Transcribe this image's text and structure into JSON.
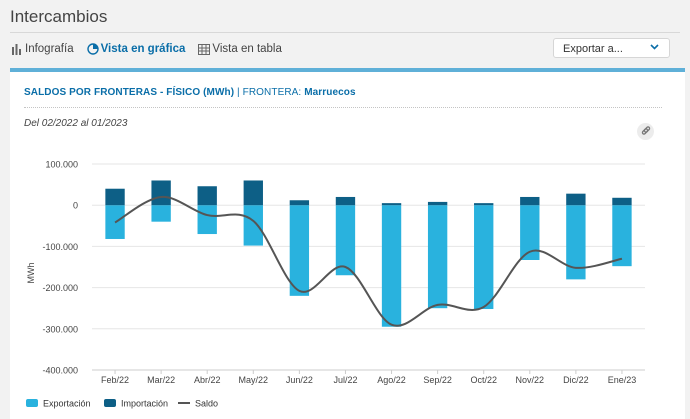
{
  "header": {
    "title": "Intercambios"
  },
  "tabs": [
    {
      "label": "Infografía",
      "active": false,
      "icon": "bar-chart-icon"
    },
    {
      "label": "Vista en gráfica",
      "active": true,
      "icon": "pie-chart-icon"
    },
    {
      "label": "Vista en tabla",
      "active": false,
      "icon": "table-icon"
    }
  ],
  "export": {
    "label": "Exportar a..."
  },
  "card": {
    "title_main": "SALDOS POR FRONTERAS - FÍSICO (MWh)",
    "title_sep": " | ",
    "frontier_label": "FRONTERA: ",
    "frontier_value": "Marruecos",
    "date_range": "Del 02/2022 al 01/2023"
  },
  "colors": {
    "accent": "#0a6ea8",
    "exportacion": "#29b2de",
    "importacion": "#0d5f86",
    "saldo": "#555555",
    "card_border": "#5fb0d8"
  },
  "chart_data": {
    "type": "bar",
    "ylabel": "MWh",
    "ylim": [
      -400000,
      100000
    ],
    "yticks": [
      100000,
      0,
      -100000,
      -200000,
      -300000,
      -400000
    ],
    "ytick_labels": [
      "100.000",
      "0",
      "-100.000",
      "-200.000",
      "-300.000",
      "-400.000"
    ],
    "categories": [
      "Feb/22",
      "Mar/22",
      "Abr/22",
      "May/22",
      "Jun/22",
      "Jul/22",
      "Ago/22",
      "Sep/22",
      "Oct/22",
      "Nov/22",
      "Dic/22",
      "Ene/23"
    ],
    "series": [
      {
        "name": "Exportación",
        "kind": "bar",
        "values": [
          -82000,
          -40000,
          -70000,
          -98000,
          -220000,
          -170000,
          -295000,
          -250000,
          -252000,
          -133000,
          -180000,
          -148000
        ]
      },
      {
        "name": "Importación",
        "kind": "bar",
        "values": [
          40000,
          60000,
          46000,
          60000,
          12000,
          20000,
          5000,
          8000,
          5000,
          20000,
          28000,
          18000
        ]
      },
      {
        "name": "Saldo",
        "kind": "line",
        "values": [
          -42000,
          20000,
          -24000,
          -38000,
          -208000,
          -150000,
          -290000,
          -242000,
          -247000,
          -113000,
          -152000,
          -130000
        ]
      }
    ],
    "legend": [
      "Exportación",
      "Importación",
      "Saldo"
    ],
    "legend_position": "bottom-left",
    "grid": true
  }
}
